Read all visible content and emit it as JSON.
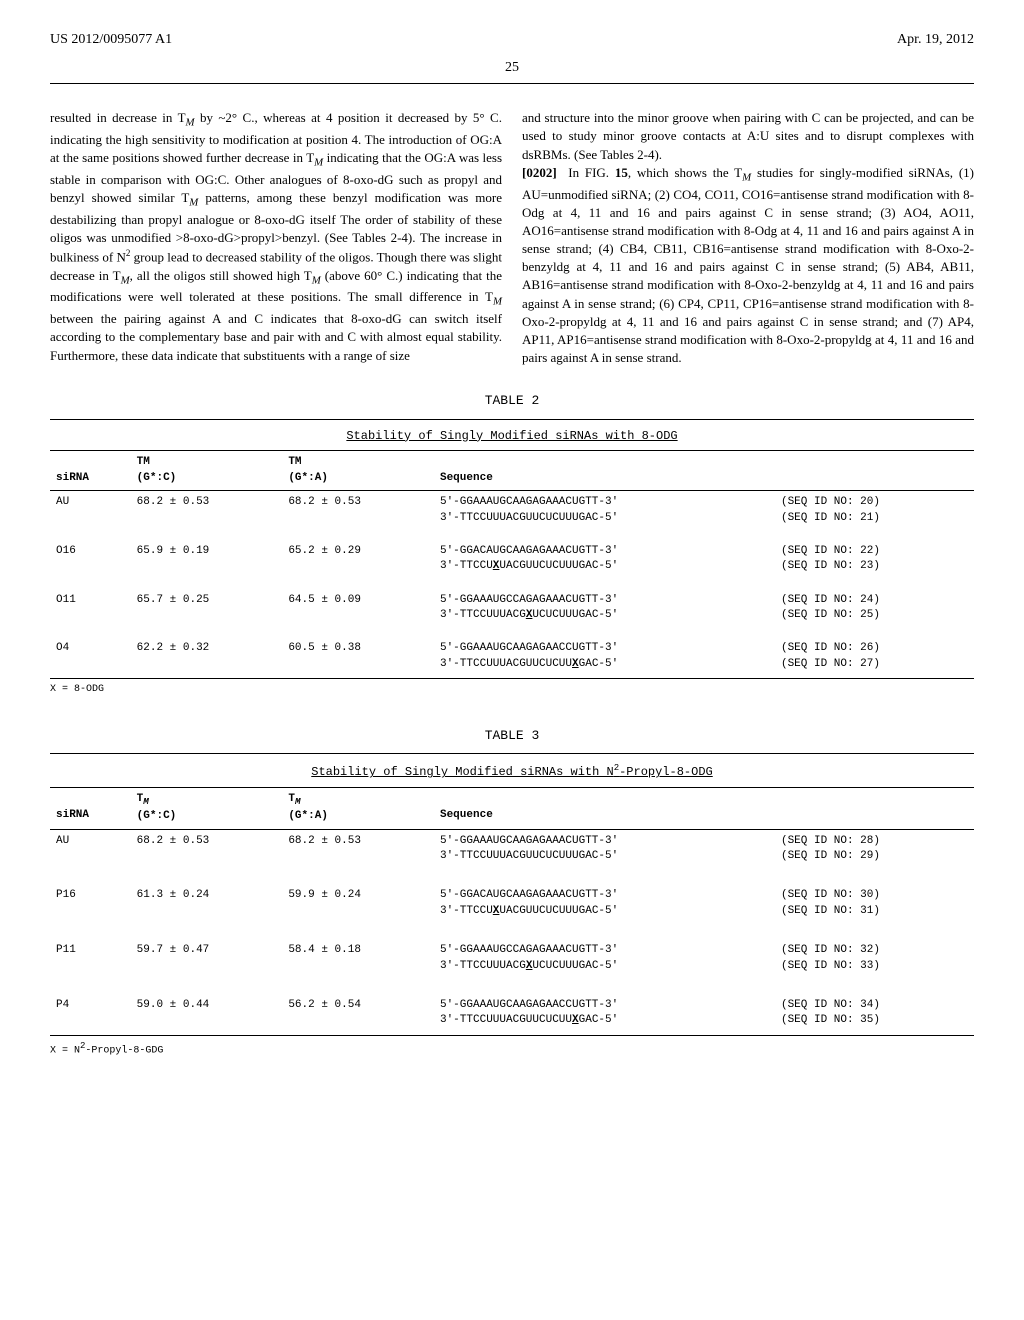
{
  "header": {
    "pub_number": "US 2012/0095077 A1",
    "pub_date": "Apr. 19, 2012",
    "page": "25"
  },
  "body": {
    "left_para": "resulted in decrease in T_M by ~2° C., whereas at 4 position it decreased by 5° C. indicating the high sensitivity to modification at position 4. The introduction of OG:A at the same positions showed further decrease in T_M indicating that the OG:A was less stable in comparison with OG:C. Other analogues of 8-oxo-dG such as propyl and benzyl showed similar T_M patterns, among these benzyl modification was more destabilizing than propyl analogue or 8-oxo-dG itself The order of stability of these oligos was unmodified >8-oxo-dG>propyl>benzyl. (See Tables 2-4). The increase in bulkiness of N² group lead to decreased stability of the oligos. Though there was slight decrease in T_M, all the oligos still showed high T_M (above 60° C.) indicating that the modifications were well tolerated at these positions. The small difference in T_M between the pairing against A and C indicates that 8-oxo-dG can switch itself according to the complementary base and pair with and C with almost equal stability. Furthermore, these data indicate that substituents with a range of size",
    "right_para1": "and structure into the minor groove when pairing with C can be projected, and can be used to study minor groove contacts at A:U sites and to disrupt complexes with dsRBMs. (See Tables 2-4).",
    "right_para2_num": "[0202]",
    "right_para2": "  In FIG. 15, which shows the T_M studies for singly-modified siRNAs, (1) AU=unmodified siRNA; (2) CO4, CO11, CO16=antisense strand modification with 8-Odg at 4, 11 and 16 and pairs against C in sense strand; (3) AO4, AO11, AO16=antisense strand modification with 8-Odg at 4, 11 and 16 and pairs against A in sense strand; (4) CB4, CB11, CB16=antisense strand modification with 8-Oxo-2-benzyldg at 4, 11 and 16 and pairs against C in sense strand; (5) AB4, AB11, AB16=antisense strand modification with 8-Oxo-2-benzyldg at 4, 11 and 16 and pairs against A in sense strand; (6) CP4, CP11, CP16=antisense strand modification with 8-Oxo-2-propyldg at 4, 11 and 16 and pairs against C in sense strand; and (7) AP4, AP11, AP16=antisense strand modification with 8-Oxo-2-propyldg at 4, 11 and 16 and pairs against A in sense strand."
  },
  "table2": {
    "label": "TABLE 2",
    "title": "Stability of Singly Modified siRNAs with 8-ODG",
    "headers": {
      "c1": "siRNA",
      "c2": "TM\n(G*:C)",
      "c3": "TM\n(G*:A)",
      "c4": "Sequence"
    },
    "rows": [
      {
        "siRNA": "AU",
        "tm_c": "68.2 ± 0.53",
        "tm_a": "68.2 ± 0.53",
        "seq1": "5'-GGAAAUGCAAGAGAAACUGTT-3'",
        "seq2": "3'-TTCCUUUACGUUCUCUUUGAC-5'",
        "id1": "(SEQ ID NO: 20)",
        "id2": "(SEQ ID NO: 21)"
      },
      {
        "siRNA": "O16",
        "tm_c": "65.9 ± 0.19",
        "tm_a": "65.2 ± 0.29",
        "seq1": "5'-GGACAUGCAAGAGAAACUGTT-3'",
        "seq2": "3'-TTCCUXUACGUUCUCUUUGAC-5'",
        "id1": "(SEQ ID NO: 22)",
        "id2": "(SEQ ID NO: 23)"
      },
      {
        "siRNA": "O11",
        "tm_c": "65.7 ± 0.25",
        "tm_a": "64.5 ± 0.09",
        "seq1": "5'-GGAAAUGCCAGAGAAACUGTT-3'",
        "seq2": "3'-TTCCUUUACGXUCUCUUUGAC-5'",
        "id1": "(SEQ ID NO: 24)",
        "id2": "(SEQ ID NO: 25)"
      },
      {
        "siRNA": "O4",
        "tm_c": "62.2 ± 0.32",
        "tm_a": "60.5 ± 0.38",
        "seq1": "5'-GGAAAUGCAAGAGAACCUGTT-3'",
        "seq2": "3'-TTCCUUUACGUUCUCUUXGAC-5'",
        "id1": "(SEQ ID NO: 26)",
        "id2": "(SEQ ID NO: 27)"
      }
    ],
    "footnote": "X = 8-ODG"
  },
  "table3": {
    "label": "TABLE 3",
    "title": "Stability of Singly Modified siRNAs with N²-Propyl-8-ODG",
    "headers": {
      "c1": "siRNA",
      "c2": "T_M\n(G*:C)",
      "c3": "T_M\n(G*:A)",
      "c4": "Sequence"
    },
    "rows": [
      {
        "siRNA": "AU",
        "tm_c": "68.2 ± 0.53",
        "tm_a": "68.2 ± 0.53",
        "seq1": "5'-GGAAAUGCAAGAGAAACUGTT-3'",
        "seq2": "3'-TTCCUUUACGUUCUCUUUGAC-5'",
        "id1": "(SEQ ID NO: 28)",
        "id2": "(SEQ ID NO: 29)"
      },
      {
        "siRNA": "P16",
        "tm_c": "61.3 ± 0.24",
        "tm_a": "59.9 ± 0.24",
        "seq1": "5'-GGACAUGCAAGAGAAACUGTT-3'",
        "seq2": "3'-TTCCUXUACGUUCUCUUUGAC-5'",
        "id1": "(SEQ ID NO: 30)",
        "id2": "(SEQ ID NO: 31)"
      },
      {
        "siRNA": "P11",
        "tm_c": "59.7 ± 0.47",
        "tm_a": "58.4 ± 0.18",
        "seq1": "5'-GGAAAUGCCAGAGAAACUGTT-3'",
        "seq2": "3'-TTCCUUUACGXUCUCUUUGAC-5'",
        "id1": "(SEQ ID NO: 32)",
        "id2": "(SEQ ID NO: 33)"
      },
      {
        "siRNA": "P4",
        "tm_c": "59.0 ± 0.44",
        "tm_a": "56.2 ± 0.54",
        "seq1": "5'-GGAAAUGCAAGAGAACCUGTT-3'",
        "seq2": "3'-TTCCUUUACGUUCUCUUXGAC-5'",
        "id1": "(SEQ ID NO: 34)",
        "id2": "(SEQ ID NO: 35)"
      }
    ],
    "footnote": "X = N²-Propyl-8-GDG"
  }
}
